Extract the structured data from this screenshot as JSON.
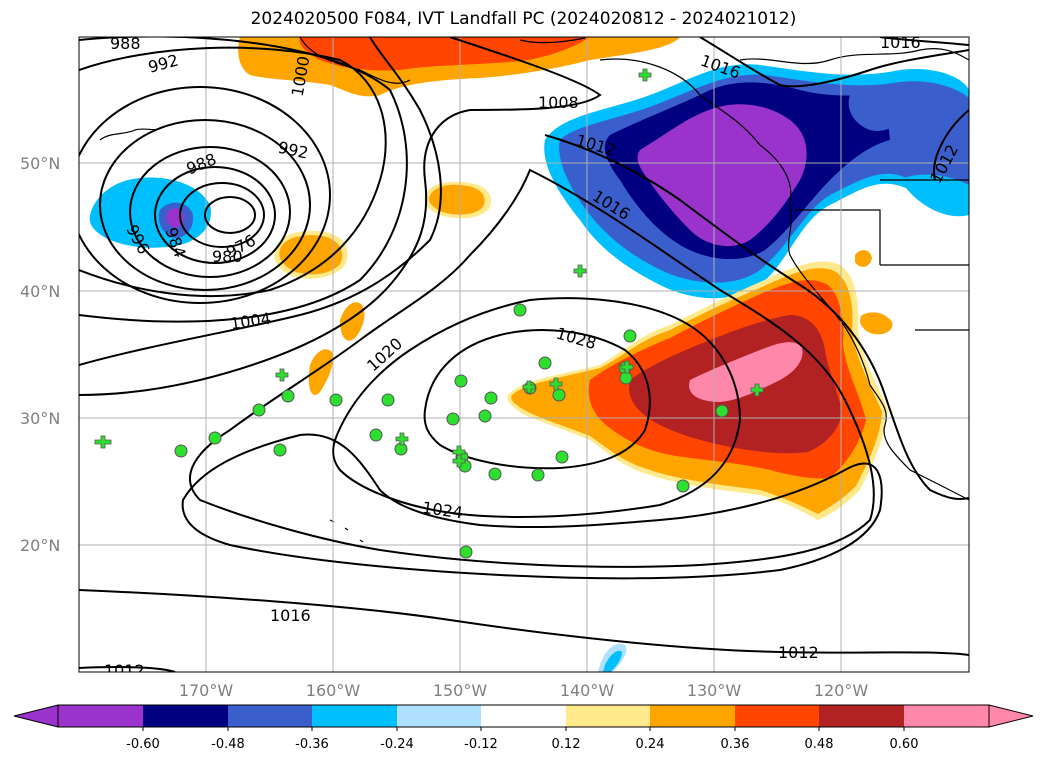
{
  "title": "2024020500 F084, IVT Landfall PC (2024020812 - 2024021012)",
  "lat_labels": [
    "50°N",
    "40°N",
    "30°N",
    "20°N"
  ],
  "lon_labels": [
    "170°W",
    "160°W",
    "150°W",
    "140°W",
    "130°W",
    "120°W"
  ],
  "contour_labels": [
    "988",
    "992",
    "1000",
    "992",
    "988",
    "996",
    "984",
    "976",
    "980",
    "1004",
    "1008",
    "1012",
    "1016",
    "1016",
    "1012",
    "1016",
    "1020",
    "1028",
    "1024",
    "1016",
    "1012",
    "1012"
  ],
  "colorbar": {
    "ticks": [
      "-0.60",
      "-0.48",
      "-0.36",
      "-0.24",
      "-0.12",
      "0.12",
      "0.24",
      "0.36",
      "0.48",
      "0.60"
    ],
    "colors": [
      "#9933cc",
      "#000080",
      "#3a5fcd",
      "#00bfff",
      "#b0e0ff",
      "#ffffff",
      "#ffe98a",
      "#ffa500",
      "#ff4500",
      "#b22222",
      "#ff88aa"
    ]
  },
  "colors": {
    "coast": "#000000",
    "isobar": "#000000",
    "marker": "#2ee02e"
  }
}
